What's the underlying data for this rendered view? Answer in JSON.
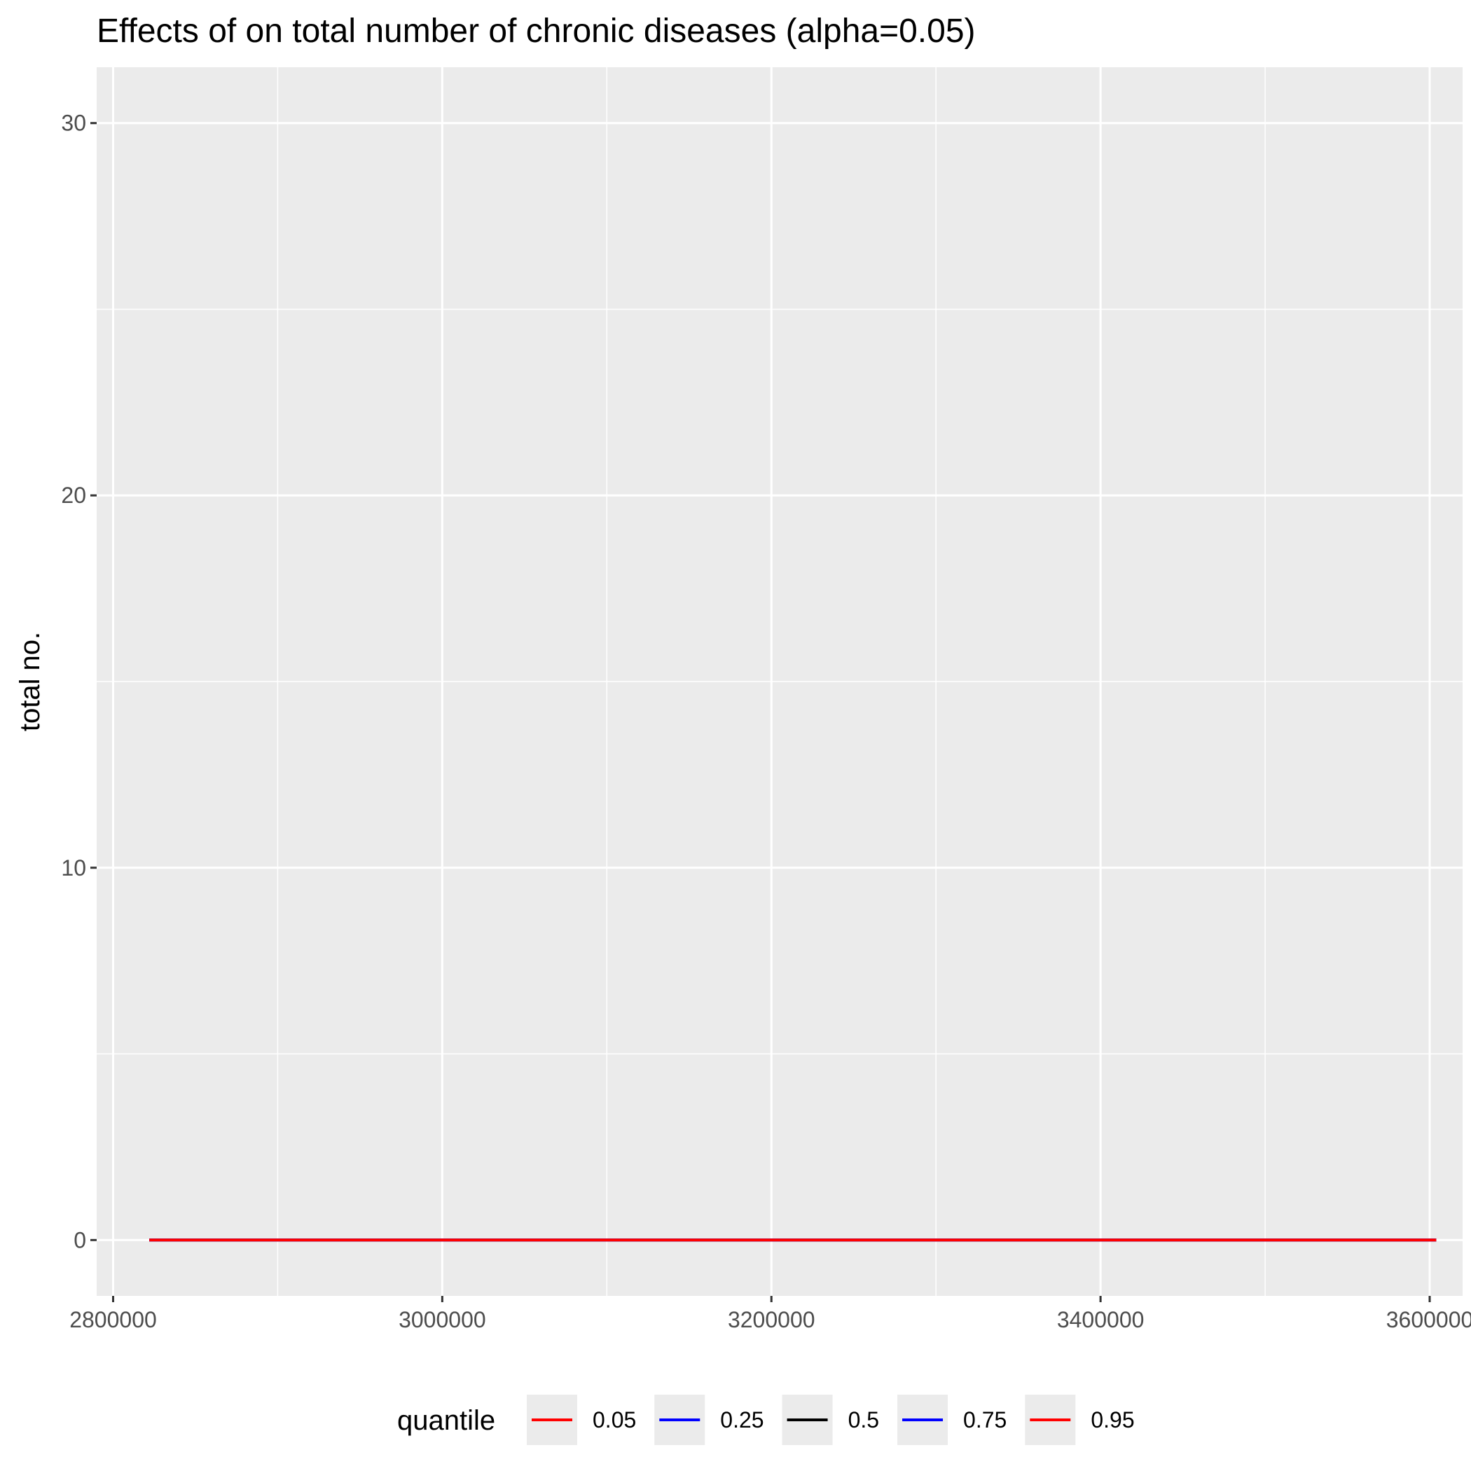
{
  "chart_data": {
    "type": "line",
    "title": "Effects of  on total number of chronic diseases (alpha=0.05)",
    "xlabel": "",
    "ylabel": "total no.",
    "xlim": [
      2790000,
      3620000
    ],
    "ylim": [
      -1.5,
      31.5
    ],
    "x_ticks": [
      2800000,
      3000000,
      3200000,
      3400000,
      3600000
    ],
    "x_tick_labels": [
      "2800000",
      "3000000",
      "3200000",
      "3400000",
      "3600000"
    ],
    "y_ticks": [
      0,
      10,
      20,
      30
    ],
    "y_tick_labels": [
      "0",
      "10",
      "20",
      "30"
    ],
    "grid": true,
    "panel_background": "#ebebeb",
    "grid_color": "#ffffff",
    "legend": {
      "title": "quantile",
      "position": "bottom"
    },
    "series": [
      {
        "name": "0.05",
        "color": "#ff0000",
        "x": [
          2822000,
          3604000
        ],
        "y": [
          0,
          0
        ]
      },
      {
        "name": "0.25",
        "color": "#0000ff",
        "x": [
          2822000,
          3604000
        ],
        "y": [
          0,
          0
        ]
      },
      {
        "name": "0.5",
        "color": "#000000",
        "x": [
          2822000,
          3604000
        ],
        "y": [
          0,
          0
        ]
      },
      {
        "name": "0.75",
        "color": "#0000ff",
        "x": [
          2822000,
          3604000
        ],
        "y": [
          0,
          0
        ]
      },
      {
        "name": "0.95",
        "color": "#ff0000",
        "x": [
          2822000,
          3604000
        ],
        "y": [
          0,
          0
        ]
      }
    ]
  }
}
